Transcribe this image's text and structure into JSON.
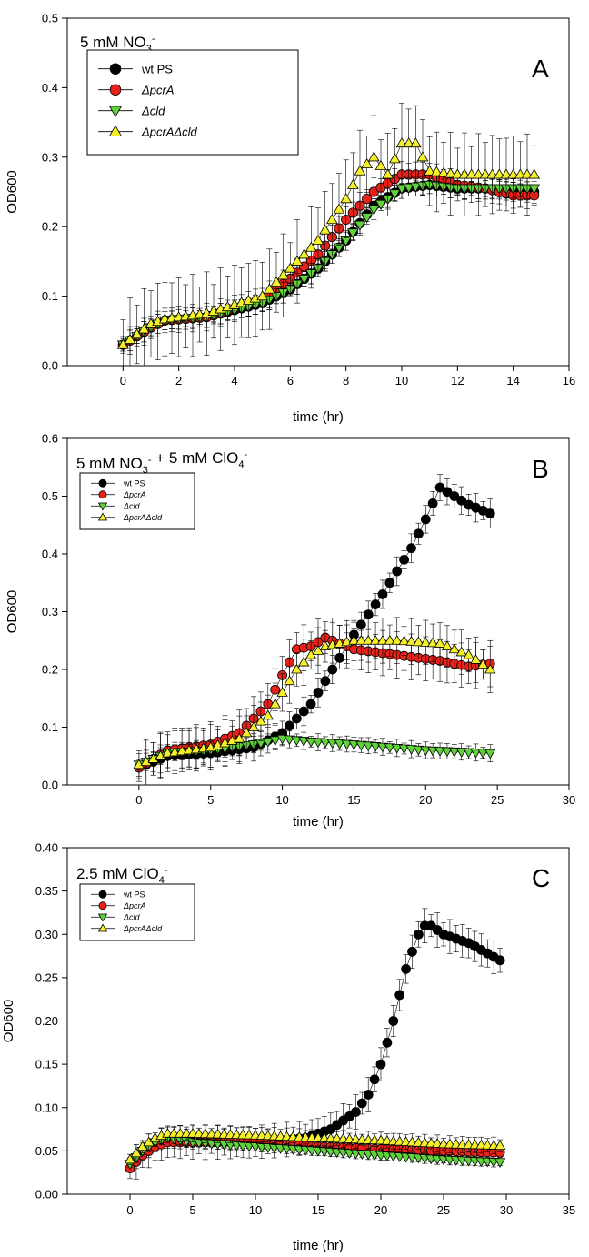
{
  "chart_data": [
    {
      "type": "scatter",
      "panel": "A",
      "condition_parts": [
        {
          "t": "5 mM NO"
        },
        {
          "t": "3",
          "sub": true
        },
        {
          "t": "-",
          "sup": true
        }
      ],
      "xlabel": "time (hr)",
      "ylabel": "OD600",
      "xlim": [
        -2,
        16
      ],
      "ylim": [
        0,
        0.5
      ],
      "xticks": [
        0,
        2,
        4,
        6,
        8,
        10,
        12,
        14,
        16
      ],
      "xtick_labels": [
        "0",
        "2",
        "4",
        "6",
        "8",
        "10",
        "12",
        "14",
        "16"
      ],
      "yticks": [
        0,
        0.1,
        0.2,
        0.3,
        0.4,
        0.5
      ],
      "ytick_labels": [
        "0.0",
        "0.1",
        "0.2",
        "0.3",
        "0.4",
        "0.5"
      ],
      "legend": {
        "position": "top-left",
        "size": "large"
      },
      "series": [
        {
          "name": "wt PS",
          "marker": "circle",
          "fill": "#000000",
          "x_start": 0,
          "dx": 0.25,
          "n": 60,
          "anchors": [
            [
              0,
              0.03
            ],
            [
              1,
              0.055
            ],
            [
              1.5,
              0.065
            ],
            [
              3,
              0.07
            ],
            [
              5,
              0.09
            ],
            [
              6,
              0.11
            ],
            [
              7,
              0.14
            ],
            [
              8,
              0.18
            ],
            [
              9,
              0.23
            ],
            [
              10,
              0.255
            ],
            [
              11,
              0.26
            ],
            [
              12,
              0.255
            ],
            [
              13,
              0.255
            ],
            [
              14,
              0.25
            ],
            [
              14.75,
              0.25
            ]
          ],
          "err": 0.015
        },
        {
          "name": "ΔpcrA",
          "marker": "circle",
          "fill": "#e8221b",
          "x_start": 0,
          "dx": 0.25,
          "n": 60,
          "anchors": [
            [
              0,
              0.03
            ],
            [
              1,
              0.055
            ],
            [
              1.5,
              0.065
            ],
            [
              3,
              0.07
            ],
            [
              5,
              0.095
            ],
            [
              6,
              0.125
            ],
            [
              7,
              0.16
            ],
            [
              8,
              0.21
            ],
            [
              9,
              0.25
            ],
            [
              10,
              0.275
            ],
            [
              11,
              0.275
            ],
            [
              12,
              0.26
            ],
            [
              13,
              0.255
            ],
            [
              14,
              0.245
            ],
            [
              14.75,
              0.245
            ]
          ],
          "err": 0.02
        },
        {
          "name": "Δcld",
          "marker": "triangle-down",
          "fill": "#5fd13a",
          "x_start": 0,
          "dx": 0.25,
          "n": 60,
          "anchors": [
            [
              0,
              0.03
            ],
            [
              1,
              0.055
            ],
            [
              1.5,
              0.065
            ],
            [
              3,
              0.07
            ],
            [
              5,
              0.09
            ],
            [
              6,
              0.11
            ],
            [
              7,
              0.14
            ],
            [
              8,
              0.18
            ],
            [
              9,
              0.225
            ],
            [
              10,
              0.255
            ],
            [
              11,
              0.26
            ],
            [
              12,
              0.255
            ],
            [
              13,
              0.255
            ],
            [
              14,
              0.255
            ],
            [
              14.75,
              0.255
            ]
          ],
          "err": 0.015
        },
        {
          "name": "ΔpcrAΔcld",
          "marker": "triangle-up",
          "fill": "#f5f02a",
          "x_start": 0,
          "dx": 0.25,
          "n": 60,
          "anchors": [
            [
              0,
              0.03
            ],
            [
              1,
              0.06
            ],
            [
              1.5,
              0.067
            ],
            [
              3,
              0.075
            ],
            [
              5,
              0.1
            ],
            [
              6,
              0.14
            ],
            [
              7,
              0.18
            ],
            [
              8,
              0.24
            ],
            [
              8.5,
              0.28
            ],
            [
              9,
              0.3
            ],
            [
              9.5,
              0.275
            ],
            [
              10,
              0.32
            ],
            [
              10.5,
              0.32
            ],
            [
              11,
              0.28
            ],
            [
              12,
              0.275
            ],
            [
              13,
              0.275
            ],
            [
              14,
              0.275
            ],
            [
              14.75,
              0.275
            ]
          ],
          "err": 0.06
        }
      ]
    },
    {
      "type": "scatter",
      "panel": "B",
      "condition_parts": [
        {
          "t": "5 mM NO"
        },
        {
          "t": "3",
          "sub": true
        },
        {
          "t": "-",
          "sup": true
        },
        {
          "t": " + 5 mM ClO"
        },
        {
          "t": "4",
          "sub": true
        },
        {
          "t": "-",
          "sup": true
        }
      ],
      "xlabel": "time (hr)",
      "ylabel": "OD600",
      "xlim": [
        -5,
        30
      ],
      "ylim": [
        0,
        0.6
      ],
      "xticks": [
        0,
        5,
        10,
        15,
        20,
        25,
        30
      ],
      "xtick_labels": [
        "0",
        "5",
        "10",
        "15",
        "20",
        "25",
        "30"
      ],
      "yticks": [
        0,
        0.1,
        0.2,
        0.3,
        0.4,
        0.5,
        0.6
      ],
      "ytick_labels": [
        "0.0",
        "0.1",
        "0.2",
        "0.3",
        "0.4",
        "0.5",
        "0.6"
      ],
      "legend": {
        "position": "top-left",
        "size": "small"
      },
      "series": [
        {
          "name": "wt PS",
          "marker": "circle",
          "fill": "#000000",
          "x_start": 0,
          "dx": 0.5,
          "n": 50,
          "anchors": [
            [
              0,
              0.03
            ],
            [
              1,
              0.04
            ],
            [
              2,
              0.05
            ],
            [
              5,
              0.055
            ],
            [
              8,
              0.065
            ],
            [
              10,
              0.09
            ],
            [
              12,
              0.14
            ],
            [
              13,
              0.18
            ],
            [
              15,
              0.26
            ],
            [
              17,
              0.33
            ],
            [
              19,
              0.41
            ],
            [
              20,
              0.46
            ],
            [
              21,
              0.515
            ],
            [
              22,
              0.5
            ],
            [
              23,
              0.485
            ],
            [
              24.5,
              0.47
            ]
          ],
          "err": 0.025
        },
        {
          "name": "ΔpcrA",
          "marker": "circle",
          "fill": "#e8221b",
          "x_start": 0,
          "dx": 0.5,
          "n": 50,
          "anchors": [
            [
              0,
              0.03
            ],
            [
              2,
              0.06
            ],
            [
              5,
              0.07
            ],
            [
              7,
              0.09
            ],
            [
              9,
              0.14
            ],
            [
              10,
              0.19
            ],
            [
              11,
              0.235
            ],
            [
              12,
              0.24
            ],
            [
              13,
              0.255
            ],
            [
              15,
              0.235
            ],
            [
              18,
              0.225
            ],
            [
              21,
              0.215
            ],
            [
              23,
              0.205
            ],
            [
              24.5,
              0.21
            ]
          ],
          "err": 0.04
        },
        {
          "name": "Δcld",
          "marker": "triangle-down",
          "fill": "#5fd13a",
          "x_start": 0,
          "dx": 0.5,
          "n": 50,
          "anchors": [
            [
              0,
              0.035
            ],
            [
              2,
              0.055
            ],
            [
              5,
              0.06
            ],
            [
              8,
              0.07
            ],
            [
              10,
              0.08
            ],
            [
              12,
              0.075
            ],
            [
              15,
              0.07
            ],
            [
              20,
              0.06
            ],
            [
              24.5,
              0.055
            ]
          ],
          "err": 0.015
        },
        {
          "name": "ΔpcrAΔcld",
          "marker": "triangle-up",
          "fill": "#f5f02a",
          "x_start": 0,
          "dx": 0.5,
          "n": 50,
          "anchors": [
            [
              0,
              0.035
            ],
            [
              2,
              0.055
            ],
            [
              5,
              0.065
            ],
            [
              7,
              0.08
            ],
            [
              9,
              0.12
            ],
            [
              10,
              0.16
            ],
            [
              11,
              0.2
            ],
            [
              12,
              0.225
            ],
            [
              13,
              0.24
            ],
            [
              15,
              0.25
            ],
            [
              18,
              0.25
            ],
            [
              21,
              0.245
            ],
            [
              23,
              0.225
            ],
            [
              24.5,
              0.2
            ]
          ],
          "err": 0.04
        }
      ]
    },
    {
      "type": "scatter",
      "panel": "C",
      "condition_parts": [
        {
          "t": "2.5 mM ClO"
        },
        {
          "t": "4",
          "sub": true
        },
        {
          "t": "-",
          "sup": true
        }
      ],
      "xlabel": "time (hr)",
      "ylabel": "OD600",
      "xlim": [
        -5,
        35
      ],
      "ylim": [
        0,
        0.4
      ],
      "xticks": [
        0,
        5,
        10,
        15,
        20,
        25,
        30,
        35
      ],
      "xtick_labels": [
        "0",
        "5",
        "10",
        "15",
        "20",
        "25",
        "30",
        "35"
      ],
      "yticks": [
        0,
        0.05,
        0.1,
        0.15,
        0.2,
        0.25,
        0.3,
        0.35,
        0.4
      ],
      "ytick_labels": [
        "0.00",
        "0.05",
        "0.10",
        "0.15",
        "0.20",
        "0.25",
        "0.30",
        "0.35",
        "0.40"
      ],
      "legend": {
        "position": "top-left",
        "size": "small"
      },
      "series": [
        {
          "name": "wt PS",
          "marker": "circle",
          "fill": "#000000",
          "x_start": 0,
          "dx": 0.5,
          "n": 60,
          "anchors": [
            [
              0,
              0.03
            ],
            [
              1,
              0.045
            ],
            [
              2,
              0.055
            ],
            [
              3,
              0.06
            ],
            [
              5,
              0.06
            ],
            [
              10,
              0.06
            ],
            [
              14,
              0.065
            ],
            [
              16,
              0.075
            ],
            [
              18,
              0.095
            ],
            [
              19,
              0.115
            ],
            [
              20,
              0.15
            ],
            [
              21,
              0.2
            ],
            [
              22,
              0.26
            ],
            [
              23,
              0.3
            ],
            [
              23.5,
              0.31
            ],
            [
              24,
              0.31
            ],
            [
              25,
              0.3
            ],
            [
              27,
              0.29
            ],
            [
              29.5,
              0.27
            ]
          ],
          "err": 0.02
        },
        {
          "name": "ΔpcrA",
          "marker": "circle",
          "fill": "#e8221b",
          "x_start": 0,
          "dx": 0.5,
          "n": 60,
          "anchors": [
            [
              0,
              0.03
            ],
            [
              1,
              0.045
            ],
            [
              2,
              0.055
            ],
            [
              3,
              0.06
            ],
            [
              5,
              0.06
            ],
            [
              10,
              0.06
            ],
            [
              15,
              0.055
            ],
            [
              20,
              0.052
            ],
            [
              25,
              0.05
            ],
            [
              29.5,
              0.048
            ]
          ],
          "err": 0.008
        },
        {
          "name": "Δcld",
          "marker": "triangle-down",
          "fill": "#5fd13a",
          "x_start": 0,
          "dx": 0.5,
          "n": 60,
          "anchors": [
            [
              0,
              0.035
            ],
            [
              1,
              0.05
            ],
            [
              2,
              0.06
            ],
            [
              3,
              0.065
            ],
            [
              5,
              0.06
            ],
            [
              10,
              0.055
            ],
            [
              15,
              0.05
            ],
            [
              20,
              0.045
            ],
            [
              25,
              0.04
            ],
            [
              29.5,
              0.037
            ]
          ],
          "err": 0.006
        },
        {
          "name": "ΔpcrAΔcld",
          "marker": "triangle-up",
          "fill": "#f5f02a",
          "x_start": 0,
          "dx": 0.5,
          "n": 60,
          "anchors": [
            [
              0,
              0.04
            ],
            [
              1,
              0.055
            ],
            [
              2,
              0.065
            ],
            [
              3,
              0.07
            ],
            [
              5,
              0.07
            ],
            [
              10,
              0.068
            ],
            [
              15,
              0.065
            ],
            [
              20,
              0.062
            ],
            [
              25,
              0.058
            ],
            [
              29.5,
              0.056
            ]
          ],
          "err": 0.01
        }
      ]
    }
  ]
}
